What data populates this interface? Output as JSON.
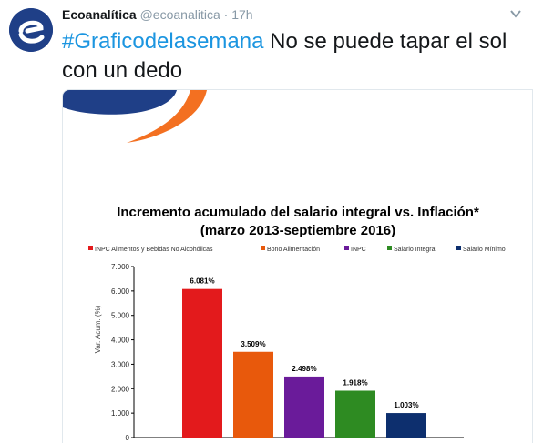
{
  "tweet": {
    "author_name": "Ecoanalítica",
    "author_handle": "@ecoanalitica",
    "separator": "·",
    "time": "17h",
    "hashtag": "#Graficodelasemana",
    "text": " No se puede tapar el sol con un dedo"
  },
  "colors": {
    "brand_blue": "#1f3f87",
    "brand_orange": "#f37021",
    "link_blue": "#1b95e0"
  },
  "chart_data": {
    "type": "bar",
    "title": "Incremento acumulado del salario integral vs. Inflación*",
    "subtitle": "(marzo 2013-septiembre 2016)",
    "ylabel": "Var. Acum. (%)",
    "xlabel": "",
    "ylim": [
      0,
      7000
    ],
    "yticks": [
      "0",
      "1.000",
      "2.000",
      "3.000",
      "4.000",
      "5.000",
      "6.000",
      "7.000"
    ],
    "grid": false,
    "legend_position": "top",
    "series": [
      {
        "name": "INPC Alimentos y Bebidas No Alcohólicas",
        "value": 6081,
        "label": "6.081%",
        "color": "#e31a1c"
      },
      {
        "name": "Bono Alimentación",
        "value": 3509,
        "label": "3.509%",
        "color": "#e8590c"
      },
      {
        "name": "INPC",
        "value": 2498,
        "label": "2.498%",
        "color": "#6a1b9a"
      },
      {
        "name": "Salario Integral",
        "value": 1918,
        "label": "1.918%",
        "color": "#2e8b22"
      },
      {
        "name": "Salario Mínimo",
        "value": 1003,
        "label": "1.003%",
        "color": "#0d2f6e"
      }
    ]
  }
}
